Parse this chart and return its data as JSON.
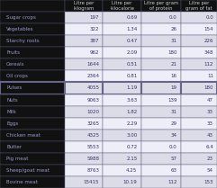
{
  "columns": [
    "Litre per\nkilogram",
    "Litre per\nkilocalorie",
    "Litre per gram\nof protein",
    "Litre per\ngram of fat"
  ],
  "rows": [
    [
      "Sugar crops",
      "197",
      "0.69",
      "0.0",
      "0.0"
    ],
    [
      "Vegetables",
      "322",
      "1.34",
      "26",
      "154"
    ],
    [
      "Starchy roots",
      "387",
      "0.47",
      "31",
      "226"
    ],
    [
      "Fruits",
      "962",
      "2.09",
      "180",
      "348"
    ],
    [
      "Cereals",
      "1644",
      "0.51",
      "21",
      "112"
    ],
    [
      "Oil crops",
      "2364",
      "0.81",
      "16",
      "11"
    ],
    [
      "Pulses",
      "4055",
      "1.19",
      "19",
      "180"
    ],
    [
      "Nuts",
      "9063",
      "3.63",
      "139",
      "47"
    ],
    [
      "Milk",
      "1020",
      "1.82",
      "31",
      "33"
    ],
    [
      "Eggs",
      "3265",
      "2.29",
      "29",
      "33"
    ],
    [
      "Chicken meat",
      "4325",
      "3.00",
      "34",
      "43"
    ],
    [
      "Butter",
      "5553",
      "0.72",
      "0.0",
      "6.4"
    ],
    [
      "Pig meat",
      "5988",
      "2.15",
      "57",
      "23"
    ],
    [
      "Sheep/goat meat",
      "8763",
      "4.25",
      "63",
      "54"
    ],
    [
      "Bovine meat",
      "15415",
      "10.19",
      "112",
      "153"
    ]
  ],
  "header_bg": "#111111",
  "header_text": "#cccccc",
  "row_label_bg": "#111111",
  "row_label_text": "#9999cc",
  "cell_bg_even": "#dcdce8",
  "cell_bg_odd": "#eeeef8",
  "cell_text": "#333366",
  "separator_after_row": 7,
  "fig_bg": "#111111",
  "edge_color": "#555577",
  "header_fontsize": 3.8,
  "cell_fontsize": 4.0
}
